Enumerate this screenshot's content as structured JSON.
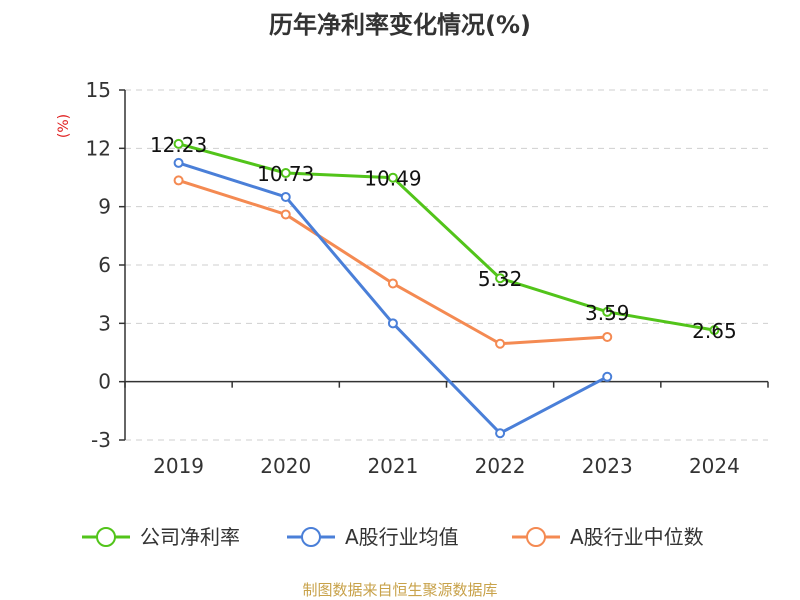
{
  "chart_data": {
    "type": "line",
    "title": "历年净利率变化情况(%)",
    "ylabel": "(%)",
    "xlabel": "",
    "categories": [
      "2019",
      "2020",
      "2021",
      "2022",
      "2023",
      "2024"
    ],
    "ylim": [
      -3,
      15
    ],
    "yticks": [
      "15",
      "12",
      "9",
      "6",
      "3",
      "0",
      "-3"
    ],
    "ytick_values": [
      15,
      12,
      9,
      6,
      3,
      0,
      -3
    ],
    "grid": true,
    "legend_position": "bottom",
    "series": [
      {
        "name": "公司净利率",
        "color": "#52c41a",
        "values": [
          12.23,
          10.73,
          10.49,
          5.32,
          3.59,
          2.65
        ],
        "labels": [
          "12.23",
          "10.73",
          "10.49",
          "5.32",
          "3.59",
          "2.65"
        ]
      },
      {
        "name": "A股行业均值",
        "color": "#4a7fd8",
        "values": [
          11.25,
          9.5,
          3.0,
          -2.65,
          0.25,
          null
        ]
      },
      {
        "name": "A股行业中位数",
        "color": "#f48a52",
        "values": [
          10.35,
          8.6,
          5.05,
          1.95,
          2.3,
          null
        ]
      }
    ],
    "source": "制图数据来自恒生聚源数据库"
  }
}
